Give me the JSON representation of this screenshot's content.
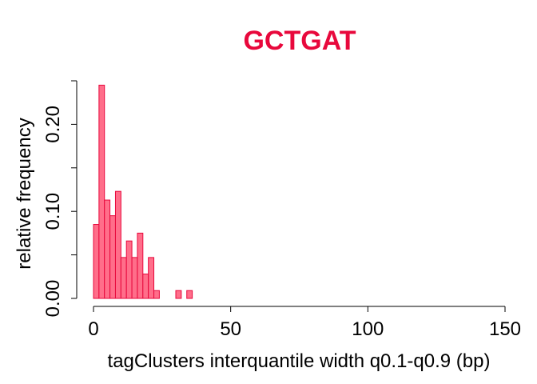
{
  "chart_data": {
    "type": "bar",
    "title": "GCTGAT",
    "xlabel": "tagClusters interquantile width q0.1-q0.9 (bp)",
    "ylabel": "relative frequency",
    "xlim": [
      0,
      150
    ],
    "ylim": [
      0,
      0.25
    ],
    "xticks": [
      "0",
      "50",
      "100",
      "150"
    ],
    "yticks": [
      "0.00",
      "0.10",
      "0.20"
    ],
    "bin_width": 2,
    "bins": [
      {
        "x0": 0,
        "x1": 2,
        "value": 0.085
      },
      {
        "x0": 2,
        "x1": 4,
        "value": 0.245
      },
      {
        "x0": 4,
        "x1": 6,
        "value": 0.113
      },
      {
        "x0": 6,
        "x1": 8,
        "value": 0.095
      },
      {
        "x0": 8,
        "x1": 10,
        "value": 0.123
      },
      {
        "x0": 10,
        "x1": 12,
        "value": 0.047
      },
      {
        "x0": 12,
        "x1": 14,
        "value": 0.066
      },
      {
        "x0": 14,
        "x1": 16,
        "value": 0.047
      },
      {
        "x0": 16,
        "x1": 18,
        "value": 0.075
      },
      {
        "x0": 18,
        "x1": 20,
        "value": 0.028
      },
      {
        "x0": 20,
        "x1": 22,
        "value": 0.047
      },
      {
        "x0": 22,
        "x1": 24,
        "value": 0.009
      },
      {
        "x0": 24,
        "x1": 26,
        "value": 0.0
      },
      {
        "x0": 26,
        "x1": 28,
        "value": 0.0
      },
      {
        "x0": 28,
        "x1": 30,
        "value": 0.0
      },
      {
        "x0": 30,
        "x1": 32,
        "value": 0.009
      },
      {
        "x0": 32,
        "x1": 34,
        "value": 0.0
      },
      {
        "x0": 34,
        "x1": 36,
        "value": 0.009
      }
    ],
    "grid": false,
    "colors": {
      "title": "#e8083c",
      "bar_fill": "#ff6e8a",
      "bar_stroke": "#e8083c",
      "axis": "#000000"
    }
  }
}
